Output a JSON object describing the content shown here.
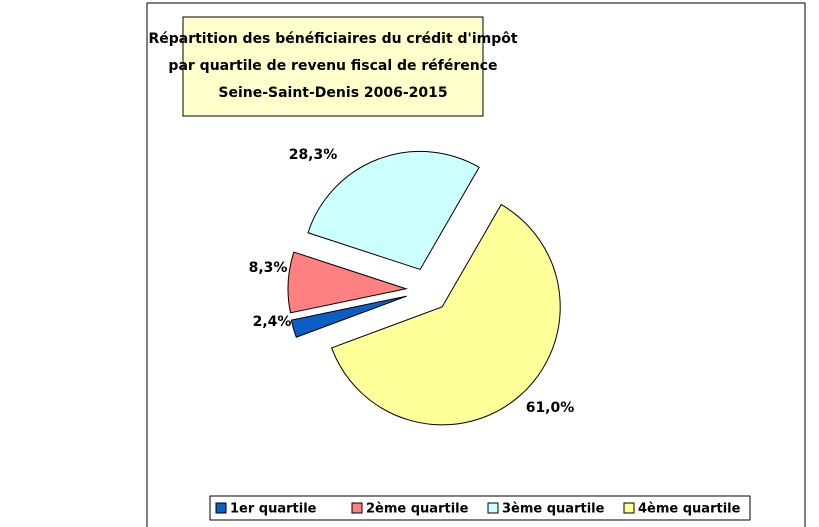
{
  "chart_data": {
    "type": "pie",
    "title": [
      "Répartition des bénéficiaires du crédit d'impôt",
      "par quartile de revenu fiscal de référence",
      "Seine-Saint-Denis 2006-2015"
    ],
    "categories": [
      "1er quartile",
      "2ème quartile",
      "3ème quartile",
      "4ème quartile"
    ],
    "values": [
      2.4,
      8.3,
      28.3,
      61.0
    ],
    "value_labels": [
      "2,4%",
      "8,3%",
      "28,3%",
      "61,0%"
    ],
    "colors": [
      "#0b5fc4",
      "#ff8080",
      "#ccffff",
      "#ffff99"
    ],
    "legend": "bottom"
  }
}
